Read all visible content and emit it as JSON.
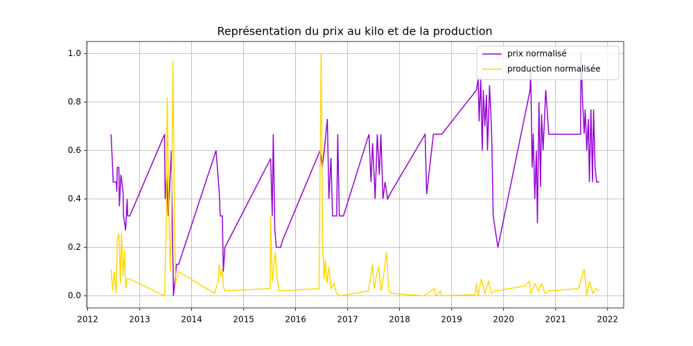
{
  "chart_data": {
    "type": "line",
    "title": "Représentation du prix au kilo et de la production",
    "xlim": [
      2011.98,
      2022.31
    ],
    "xticks": [
      2012,
      2013,
      2014,
      2015,
      2016,
      2017,
      2018,
      2019,
      2020,
      2021,
      2022
    ],
    "ylim": [
      -0.05,
      1.05
    ],
    "yticks": [
      {
        "value": 0,
        "label": "0.0"
      },
      {
        "value": 0.2,
        "label": "0.2"
      },
      {
        "value": 0.4,
        "label": "0.4"
      },
      {
        "value": 0.6,
        "label": "0.6"
      },
      {
        "value": 0.8,
        "label": "0.8"
      },
      {
        "value": 1,
        "label": "1.0"
      }
    ],
    "grid": true,
    "legend": "upper right",
    "series": [
      {
        "name": "prix normalisé",
        "color": "#9400d3",
        "x": [
          2012.45,
          2012.48,
          2012.49,
          2012.55,
          2012.56,
          2012.57,
          2012.6,
          2012.61,
          2012.64,
          2012.68,
          2012.69,
          2012.73,
          2012.76,
          2012.77,
          2012.81,
          2013.48,
          2013.49,
          2013.52,
          2013.55,
          2013.61,
          2013.65,
          2013.71,
          2013.75,
          2014.47,
          2014.53,
          2014.55,
          2014.59,
          2014.61,
          2014.64,
          2015.52,
          2015.55,
          2015.57,
          2015.6,
          2015.63,
          2015.71,
          2015.75,
          2016.47,
          2016.51,
          2016.55,
          2016.61,
          2016.64,
          2016.68,
          2016.71,
          2016.79,
          2016.81,
          2016.84,
          2016.92,
          2017.41,
          2017.45,
          2017.48,
          2017.53,
          2017.57,
          2017.61,
          2017.64,
          2017.68,
          2017.72,
          2017.77,
          2017.84,
          2018.49,
          2018.52,
          2018.65,
          2018.81,
          2019.48,
          2019.51,
          2019.53,
          2019.56,
          2019.59,
          2019.61,
          2019.64,
          2019.67,
          2019.69,
          2019.73,
          2019.77,
          2019.8,
          2019.89,
          2020.51,
          2020.52,
          2020.55,
          2020.57,
          2020.6,
          2020.63,
          2020.65,
          2020.68,
          2020.71,
          2020.73,
          2020.76,
          2020.81,
          2020.87,
          2020.89,
          2021.48,
          2021.49,
          2021.52,
          2021.55,
          2021.57,
          2021.6,
          2021.63,
          2021.65,
          2021.68,
          2021.71,
          2021.73,
          2021.76,
          2021.79,
          2021.84
        ],
        "values": [
          0.667,
          0.53,
          0.47,
          0.47,
          0.43,
          0.53,
          0.53,
          0.37,
          0.5,
          0.43,
          0.33,
          0.27,
          0.4,
          0.33,
          0.33,
          0.667,
          0.4,
          0.5,
          0.33,
          0.6,
          0,
          0.13,
          0.13,
          0.6,
          0.43,
          0.33,
          0.33,
          0.1,
          0.2,
          0.567,
          0.33,
          0.667,
          0.27,
          0.2,
          0.2,
          0.23,
          0.6,
          0.53,
          0.6,
          0.73,
          0.4,
          0.57,
          0.33,
          0.33,
          0.667,
          0.33,
          0.33,
          0.667,
          0.47,
          0.63,
          0.4,
          0.667,
          0.5,
          0.667,
          0.4,
          0.47,
          0.4,
          0.43,
          0.667,
          0.42,
          0.667,
          0.667,
          0.85,
          0.9,
          0.72,
          0.9,
          0.6,
          0.85,
          0.7,
          0.83,
          0.6,
          0.87,
          0.67,
          0.33,
          0.2,
          0.85,
          0.93,
          0.53,
          0.67,
          0.4,
          0.6,
          0.3,
          0.8,
          0.45,
          0.75,
          0.6,
          0.85,
          0.667,
          0.667,
          0.667,
          1.0,
          0.8,
          0.67,
          0.77,
          0.6,
          0.73,
          0.47,
          0.77,
          0.47,
          0.77,
          0.53,
          0.47,
          0.47
        ]
      },
      {
        "name": "production normalisée",
        "color": "#ffd700",
        "x": [
          2012.45,
          2012.48,
          2012.51,
          2012.55,
          2012.57,
          2012.6,
          2012.63,
          2012.65,
          2012.68,
          2012.71,
          2012.73,
          2012.76,
          2012.8,
          2013.48,
          2013.51,
          2013.53,
          2013.56,
          2013.59,
          2013.61,
          2013.64,
          2013.67,
          2013.69,
          2013.75,
          2014.44,
          2014.51,
          2014.53,
          2014.56,
          2014.59,
          2014.61,
          2014.64,
          2015.51,
          2015.52,
          2015.55,
          2015.57,
          2015.61,
          2015.64,
          2015.68,
          2016.45,
          2016.49,
          2016.52,
          2016.55,
          2016.57,
          2016.6,
          2016.64,
          2016.68,
          2016.73,
          2016.79,
          2016.85,
          2017.4,
          2017.48,
          2017.51,
          2017.55,
          2017.6,
          2017.64,
          2017.69,
          2017.75,
          2017.79,
          2017.84,
          2018.47,
          2018.67,
          2018.69,
          2018.79,
          2018.81,
          2019.45,
          2019.48,
          2019.51,
          2019.57,
          2019.64,
          2019.71,
          2019.77,
          2019.83,
          2020.4,
          2020.49,
          2020.53,
          2020.6,
          2020.67,
          2020.73,
          2020.8,
          2020.87,
          2021.44,
          2021.55,
          2021.6,
          2021.65,
          2021.72,
          2021.77,
          2021.84
        ],
        "values": [
          0.11,
          0.02,
          0.1,
          0.01,
          0.23,
          0.26,
          0.05,
          0.26,
          0.08,
          0.19,
          0.03,
          0.07,
          0.07,
          0,
          0.29,
          0.82,
          0.37,
          0.1,
          0.28,
          0.97,
          0.33,
          0.05,
          0.1,
          0.01,
          0.06,
          0.13,
          0.08,
          0.11,
          0.04,
          0.02,
          0.03,
          0.33,
          0.06,
          0.1,
          0.18,
          0.08,
          0.02,
          0.03,
          1.0,
          0.2,
          0.07,
          0.15,
          0.05,
          0.12,
          0.03,
          0.05,
          0.01,
          0,
          0.02,
          0.13,
          0.03,
          0.08,
          0.12,
          0.02,
          0.08,
          0.18,
          0.02,
          0.01,
          0,
          0.03,
          0,
          0.02,
          0,
          0.005,
          0.05,
          0,
          0.07,
          0.01,
          0.06,
          0.01,
          0.02,
          0.04,
          0.06,
          0.01,
          0.05,
          0.02,
          0.05,
          0.01,
          0.02,
          0.03,
          0.11,
          0,
          0.06,
          0.01,
          0.03,
          0.02
        ]
      }
    ]
  }
}
